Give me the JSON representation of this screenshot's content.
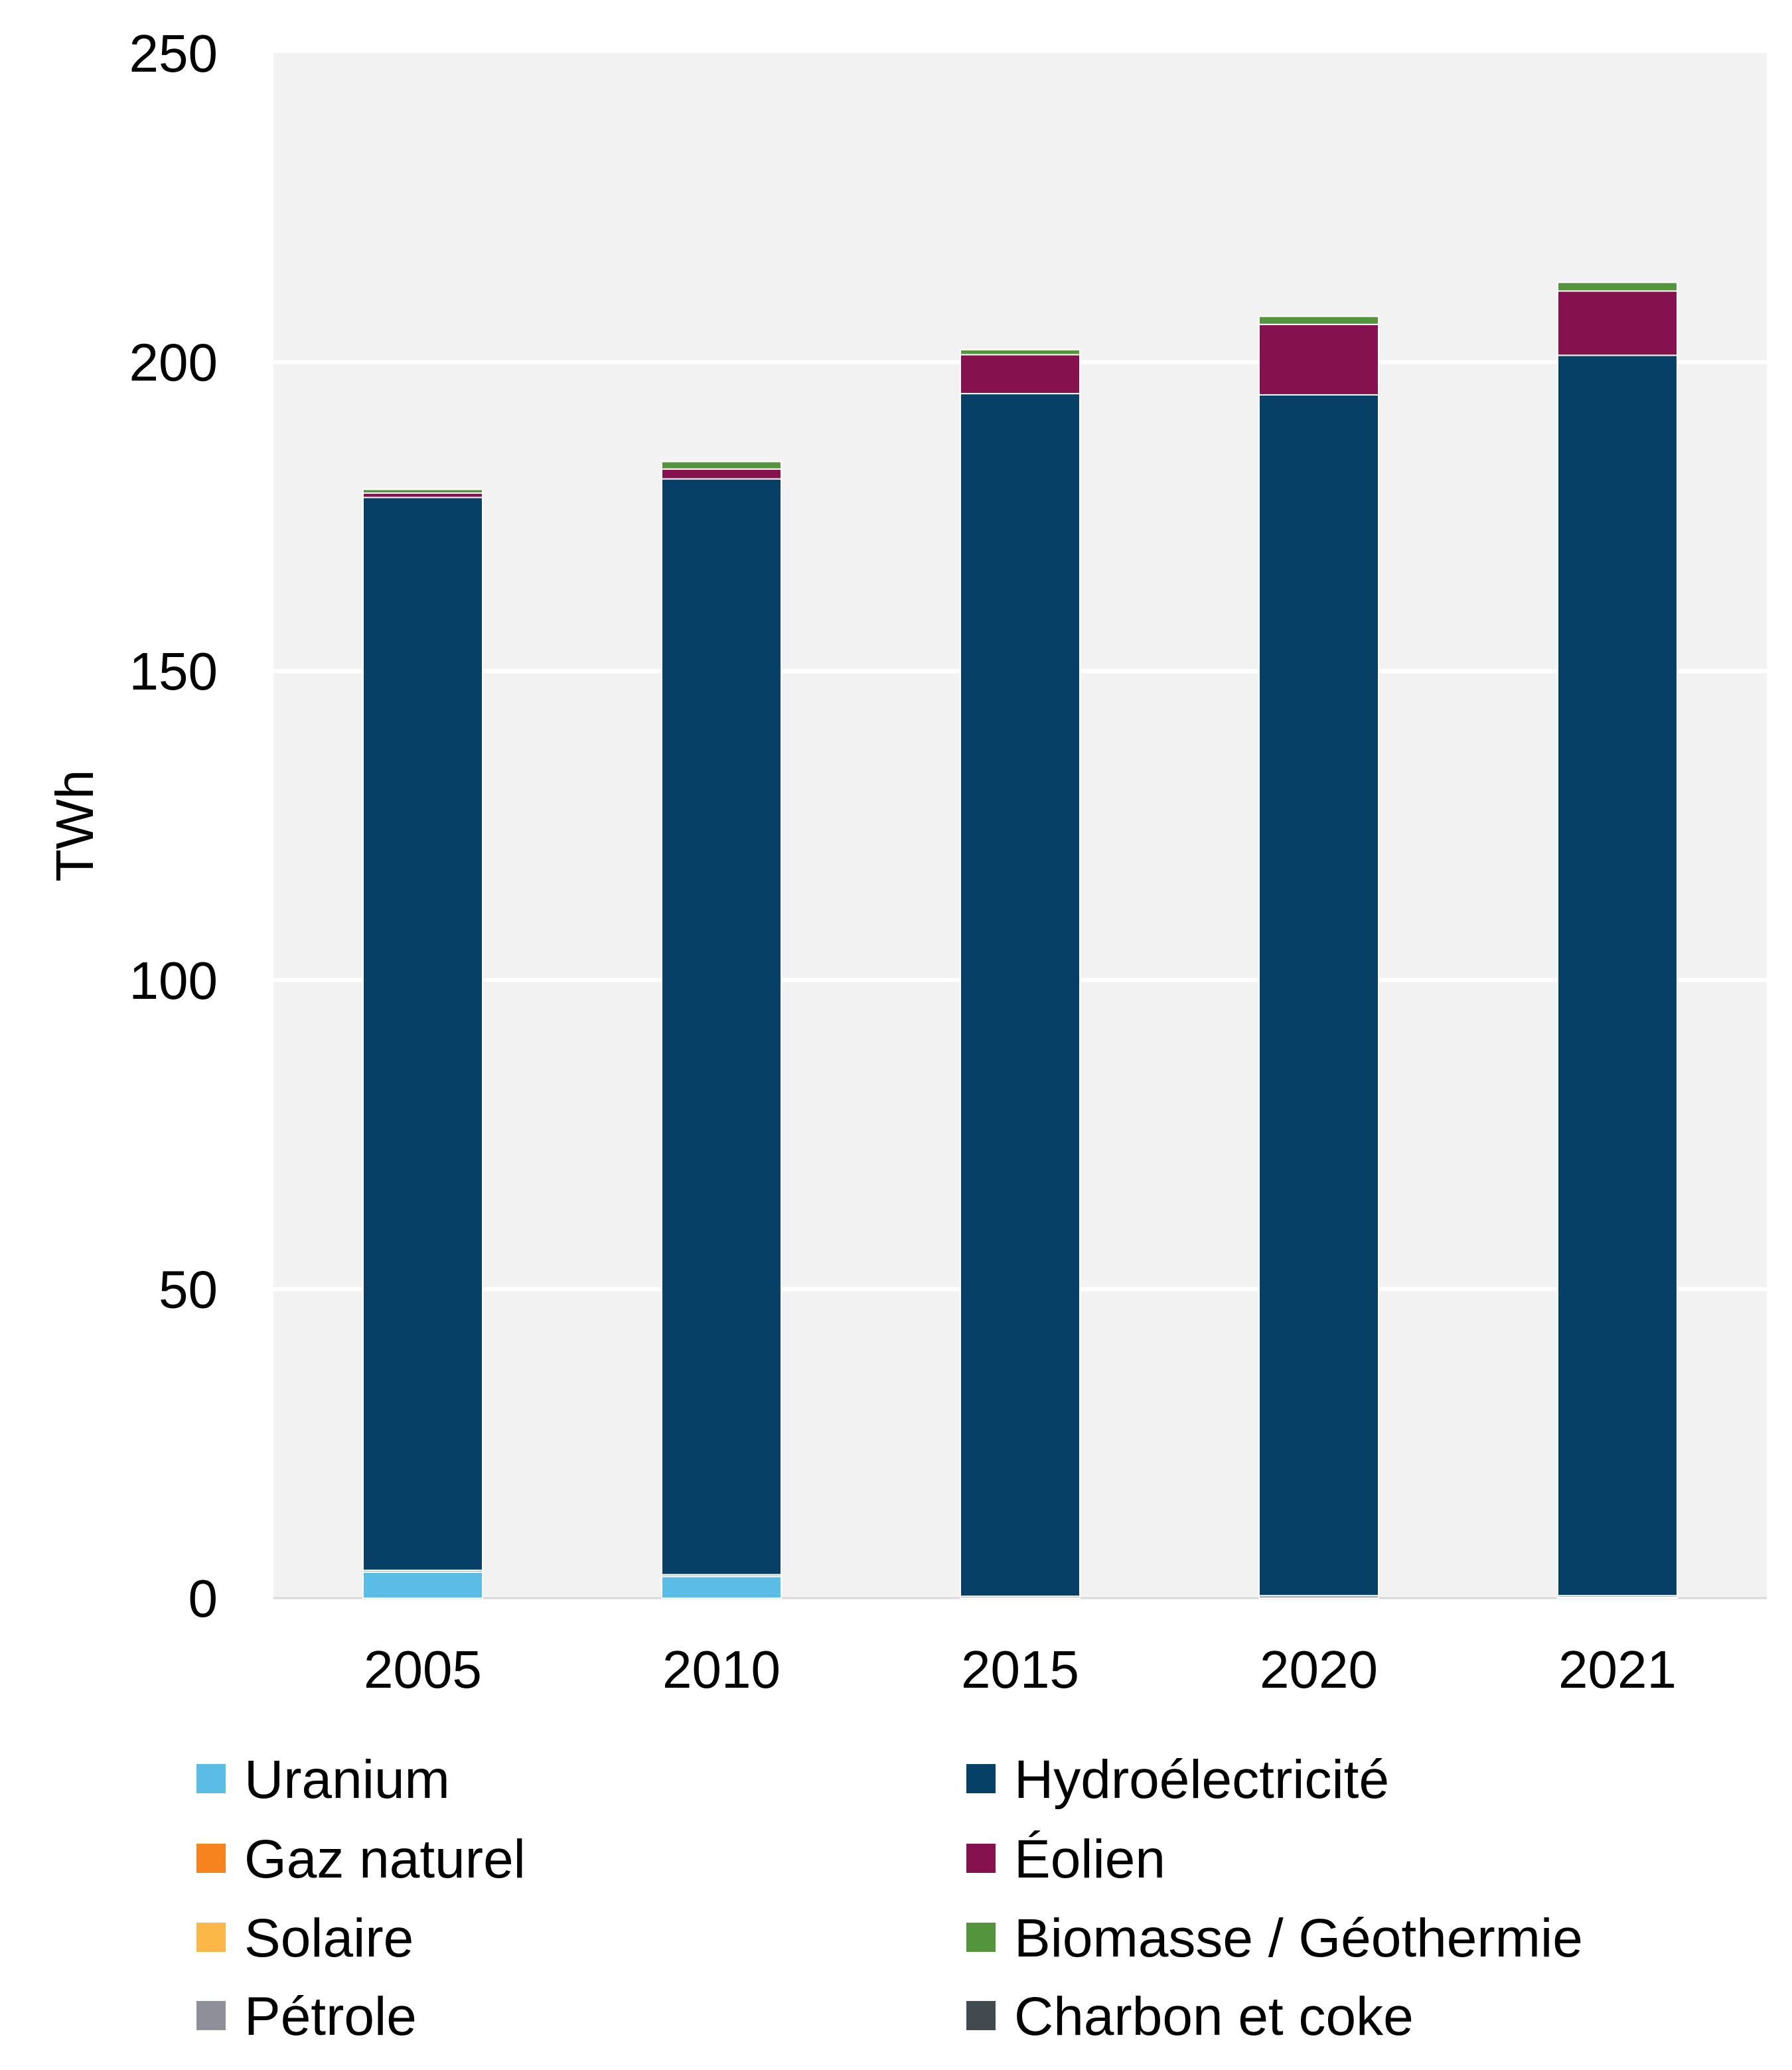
{
  "chart_data": {
    "type": "bar",
    "stacked": true,
    "title": "",
    "xlabel": "",
    "ylabel": "TWh",
    "ylim": [
      0,
      250
    ],
    "yticks": [
      0,
      50,
      100,
      150,
      200,
      250
    ],
    "grid": true,
    "legend_position": "bottom",
    "categories": [
      "2005",
      "2010",
      "2015",
      "2020",
      "2021"
    ],
    "series": [
      {
        "name": "Uranium",
        "color": "#5bbde6",
        "values": [
          4.2,
          3.5,
          0,
          0,
          0
        ]
      },
      {
        "name": "Gaz naturel",
        "color": "#f7831e",
        "values": [
          0,
          0,
          0,
          0,
          0
        ]
      },
      {
        "name": "Solaire",
        "color": "#fbb848",
        "values": [
          0,
          0,
          0,
          0,
          0.1
        ]
      },
      {
        "name": "Pétrole",
        "color": "#8e8f98",
        "values": [
          0.3,
          0.3,
          0.3,
          0.4,
          0.3
        ]
      },
      {
        "name": "Hydroélectricité",
        "color": "#074067",
        "values": [
          173.6,
          177.3,
          194.6,
          194.3,
          200.7
        ]
      },
      {
        "name": "Éolien",
        "color": "#86114f",
        "values": [
          0.7,
          1.6,
          6.3,
          11.4,
          10.4
        ]
      },
      {
        "name": "Biomasse / Géothermie",
        "color": "#54943c",
        "values": [
          0.6,
          1.2,
          0.8,
          1.3,
          1.4
        ]
      },
      {
        "name": "Charbon et coke",
        "color": "#434a4f",
        "values": [
          0,
          0,
          0,
          0,
          0
        ]
      }
    ],
    "legend_order": [
      "Uranium",
      "Hydroélectricité",
      "Gaz naturel",
      "Éolien",
      "Solaire",
      "Biomasse / Géothermie",
      "Pétrole",
      "Charbon et coke"
    ],
    "plot_background": "#f2f2f2",
    "grid_color": "#ffffff"
  }
}
